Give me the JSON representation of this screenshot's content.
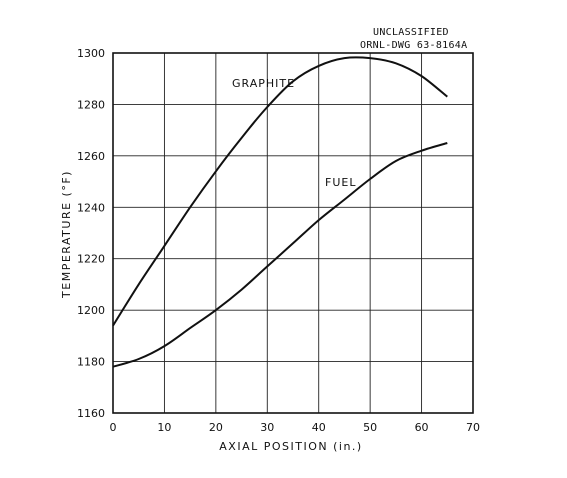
{
  "header": {
    "classification": "UNCLASSIFIED",
    "drawing_number": "ORNL-DWG 63-8164A"
  },
  "chart_data": {
    "type": "line",
    "title": "",
    "xlabel": "AXIAL POSITION (in.)",
    "ylabel": "TEMPERATURE (°F)",
    "xlim": [
      0,
      70
    ],
    "ylim": [
      1160,
      1300
    ],
    "xticks": [
      0,
      10,
      20,
      30,
      40,
      50,
      60,
      70
    ],
    "yticks": [
      1160,
      1180,
      1200,
      1220,
      1240,
      1260,
      1280,
      1300
    ],
    "grid": true,
    "line_color": "#111111",
    "series": [
      {
        "name": "GRAPHITE",
        "x": [
          0,
          5,
          10,
          15,
          20,
          25,
          30,
          35,
          40,
          45,
          50,
          55,
          60,
          65
        ],
        "y": [
          1194,
          1210,
          1225,
          1240,
          1254,
          1267,
          1279,
          1289,
          1295,
          1298,
          1298,
          1296,
          1291,
          1283
        ]
      },
      {
        "name": "FUEL",
        "x": [
          0,
          5,
          10,
          15,
          20,
          25,
          30,
          35,
          40,
          45,
          50,
          55,
          60,
          65
        ],
        "y": [
          1178,
          1181,
          1186,
          1193,
          1200,
          1208,
          1217,
          1226,
          1235,
          1243,
          1251,
          1258,
          1262,
          1265
        ]
      }
    ]
  }
}
